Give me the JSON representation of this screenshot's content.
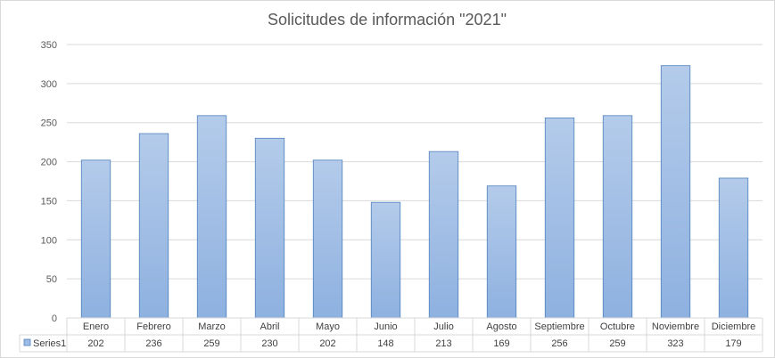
{
  "chart_data": {
    "type": "bar",
    "title": "Solicitudes  de  información  \"2021\"",
    "categories": [
      "Enero",
      "Febrero",
      "Marzo",
      "Abril",
      "Mayo",
      "Junio",
      "Julio",
      "Agosto",
      "Septiembre",
      "Octubre",
      "Noviembre",
      "Diciembre"
    ],
    "series": [
      {
        "name": "Series1",
        "values": [
          202,
          236,
          259,
          230,
          202,
          148,
          213,
          169,
          256,
          259,
          323,
          179
        ]
      }
    ],
    "ylim": [
      0,
      350
    ],
    "yticks": [
      "0",
      "50",
      "100",
      "150",
      "200",
      "250",
      "300",
      "350"
    ],
    "grid": true,
    "legend": "data-table-left",
    "colors": {
      "bar_top": "#b4cbea",
      "bar_bottom": "#8eb1e0",
      "bar_edge": "#4f81bd",
      "grid": "#d9d9d9",
      "text": "#595959",
      "legend_key": "#9dbce6"
    }
  }
}
